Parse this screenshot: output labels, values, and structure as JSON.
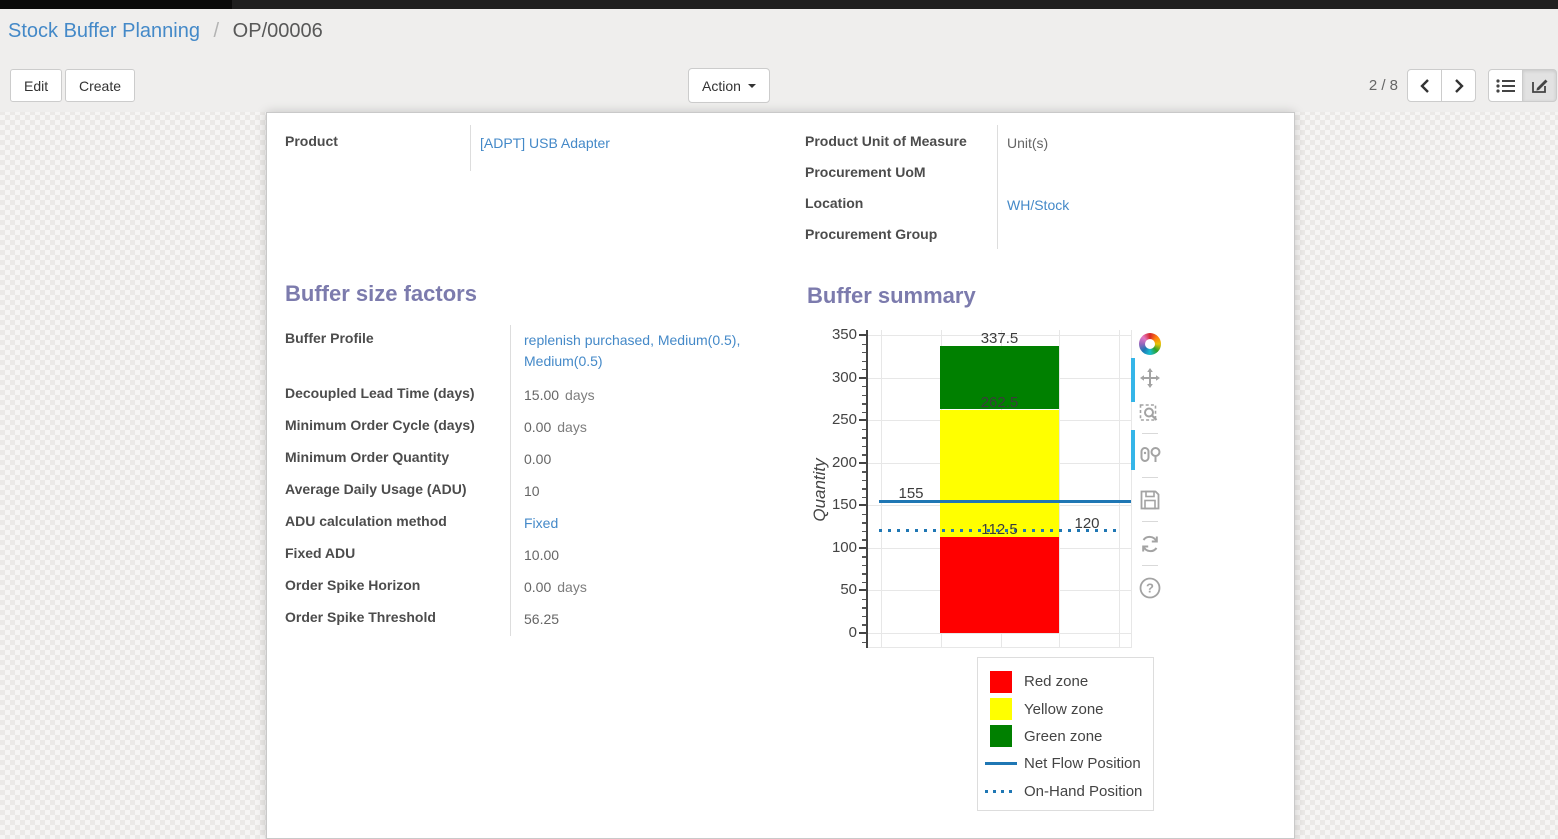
{
  "colors": {
    "link": "#4489c8",
    "heading": "#7c7bad",
    "red_zone": "#ff0000",
    "yellow_zone": "#ffff00",
    "green_zone": "#008000",
    "flow_line": "#1f77b4",
    "modebar_active": "#35b5e8"
  },
  "breadcrumb": {
    "parent": "Stock Buffer Planning",
    "separator": "/",
    "current": "OP/00006"
  },
  "toolbar": {
    "edit_label": "Edit",
    "create_label": "Create",
    "action_label": "Action",
    "pager": "2 / 8",
    "pager_icons": [
      "chevron-left-icon",
      "chevron-right-icon"
    ],
    "view_switcher_icons": [
      "list-view-icon",
      "form-view-icon"
    ],
    "active_view": "form"
  },
  "product_info": {
    "left": [
      {
        "label": "Product",
        "value": "[ADPT] USB Adapter",
        "link": true
      }
    ],
    "right": [
      {
        "label": "Product Unit of Measure",
        "value": "Unit(s)",
        "link": false
      },
      {
        "label": "Procurement UoM",
        "value": "",
        "link": false
      },
      {
        "label": "Location",
        "value": "WH/Stock",
        "link": true
      },
      {
        "label": "Procurement Group",
        "value": "",
        "link": false
      }
    ]
  },
  "buffer_factors": {
    "title": "Buffer size factors",
    "fields": [
      {
        "label": "Buffer Profile",
        "value": "replenish purchased, Medium(0.5), Medium(0.5)",
        "link": true
      },
      {
        "label": "Decoupled Lead Time (days)",
        "value": "15.00",
        "suffix": "days"
      },
      {
        "label": "Minimum Order Cycle (days)",
        "value": "0.00",
        "suffix": "days"
      },
      {
        "label": "Minimum Order Quantity",
        "value": "0.00"
      },
      {
        "label": "Average Daily Usage (ADU)",
        "value": "10"
      },
      {
        "label": "ADU calculation method",
        "value": "Fixed",
        "link": true
      },
      {
        "label": "Fixed ADU",
        "value": "10.00"
      },
      {
        "label": "Order Spike Horizon",
        "value": "0.00",
        "suffix": "days"
      },
      {
        "label": "Order Spike Threshold",
        "value": "56.25"
      }
    ]
  },
  "buffer_summary": {
    "title": "Buffer summary",
    "modebar_icons": [
      "plotly-logo-icon",
      "pan-icon",
      "zoom-box-icon",
      "compare-hover-icon",
      "save-icon",
      "reset-axes-icon",
      "help-icon"
    ]
  },
  "chart_data": {
    "type": "bar",
    "title": "",
    "xlabel": "",
    "ylabel": "Quantity",
    "ylim": [
      0,
      350
    ],
    "yticks": [
      0,
      50,
      100,
      150,
      200,
      250,
      300,
      350
    ],
    "minor_tick_step": 10,
    "grid": true,
    "zones": [
      {
        "name": "Red zone",
        "from": 0,
        "to": 112.5,
        "color": "#ff0000"
      },
      {
        "name": "Yellow zone",
        "from": 112.5,
        "to": 262.5,
        "color": "#ffff00"
      },
      {
        "name": "Green zone",
        "from": 262.5,
        "to": 337.5,
        "color": "#008000"
      }
    ],
    "lines": [
      {
        "name": "Net Flow Position",
        "value": 155,
        "style": "solid",
        "color": "#1f77b4"
      },
      {
        "name": "On-Hand Position",
        "value": 120,
        "style": "dotted",
        "color": "#1f77b4"
      }
    ],
    "annotations": [
      {
        "text": "337.5",
        "value": 337.5,
        "x": "bar-center"
      },
      {
        "text": "262.5",
        "value": 262.5,
        "x": "bar-center"
      },
      {
        "text": "112.5",
        "value": 112.5,
        "x": "bar-center"
      },
      {
        "text": "155",
        "value": 155,
        "x": "left"
      },
      {
        "text": "120",
        "value": 120,
        "x": "right"
      }
    ],
    "legend": [
      {
        "label": "Red zone",
        "swatch": "square",
        "color": "#ff0000"
      },
      {
        "label": "Yellow zone",
        "swatch": "square",
        "color": "#ffff00"
      },
      {
        "label": "Green zone",
        "swatch": "square",
        "color": "#008000"
      },
      {
        "label": "Net Flow Position",
        "swatch": "line",
        "color": "#1f77b4"
      },
      {
        "label": "On-Hand Position",
        "swatch": "dotted",
        "color": "#1f77b4"
      }
    ],
    "legend_position": "bottom-right"
  }
}
